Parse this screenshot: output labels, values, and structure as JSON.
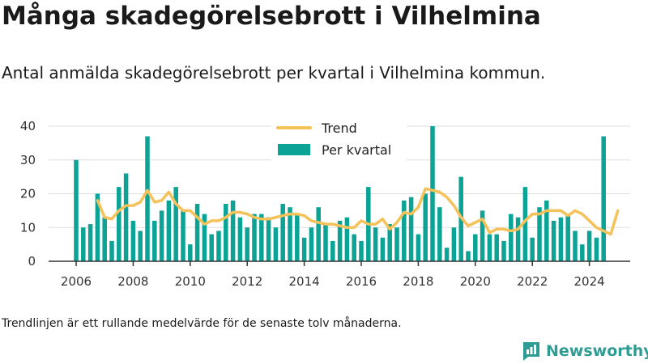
{
  "title": "Många skadegörelsebrott i Vilhelmina",
  "subtitle": "Antal anmälda skadegörelsebrott per kvartal i Vilhelmina kommun.",
  "footnote": "Trendlinjen är ett rullande medelvärde för de senaste tolv månaderna.",
  "brand": "Newsworthy",
  "colors": {
    "bars": "#0aa396",
    "trend": "#f5c25a",
    "axis": "#333333",
    "grid": "#dddddd",
    "brand": "#2f9c94"
  },
  "chart_data": {
    "type": "bar",
    "title": "Många skadegörelsebrott i Vilhelmina",
    "subtitle": "Antal anmälda skadegörelsebrott per kvartal i Vilhelmina kommun.",
    "ylim": [
      0,
      40
    ],
    "yticks": [
      0,
      10,
      20,
      30,
      40
    ],
    "xticks": [
      "2006",
      "2008",
      "2010",
      "2012",
      "2014",
      "2016",
      "2018",
      "2020",
      "2022",
      "2024"
    ],
    "grid": true,
    "legend_position": "top-center",
    "first_quarter": "2006 Q1",
    "series": [
      {
        "name": "Per kvartal",
        "type": "bar",
        "values": [
          30,
          10,
          11,
          20,
          13,
          6,
          22,
          26,
          12,
          9,
          37,
          12,
          15,
          18,
          22,
          15,
          5,
          17,
          14,
          8,
          9,
          17,
          18,
          13,
          10,
          14,
          14,
          13,
          10,
          17,
          16,
          14,
          7,
          10,
          16,
          11,
          6,
          12,
          13,
          8,
          6,
          22,
          10,
          7,
          11,
          10,
          18,
          19,
          8,
          20,
          40,
          16,
          4,
          10,
          25,
          3,
          8,
          15,
          8,
          8,
          6,
          14,
          13,
          22,
          7,
          16,
          18,
          12,
          13,
          14,
          9,
          5,
          9,
          7,
          37
        ]
      },
      {
        "name": "Trend",
        "type": "line",
        "start_index": 3,
        "values": [
          18,
          13,
          12.5,
          15,
          16.5,
          16.5,
          17.5,
          21,
          17.5,
          18,
          20.5,
          17,
          15,
          15,
          13,
          11,
          12,
          12,
          13,
          14.5,
          14.5,
          14,
          13,
          12.5,
          12.5,
          13,
          13.5,
          14,
          14,
          13.5,
          12,
          11.5,
          11,
          11,
          10.5,
          10,
          10,
          12,
          11,
          11,
          12.5,
          9.5,
          11.5,
          14.5,
          14,
          16,
          21.5,
          21,
          20.5,
          19,
          16.5,
          13,
          10.5,
          11.5,
          12.5,
          8.5,
          9.5,
          9.5,
          9,
          9.5,
          12,
          14,
          14,
          15,
          15,
          15,
          13.5,
          15,
          14,
          12,
          10,
          9,
          8,
          15
        ]
      }
    ]
  }
}
